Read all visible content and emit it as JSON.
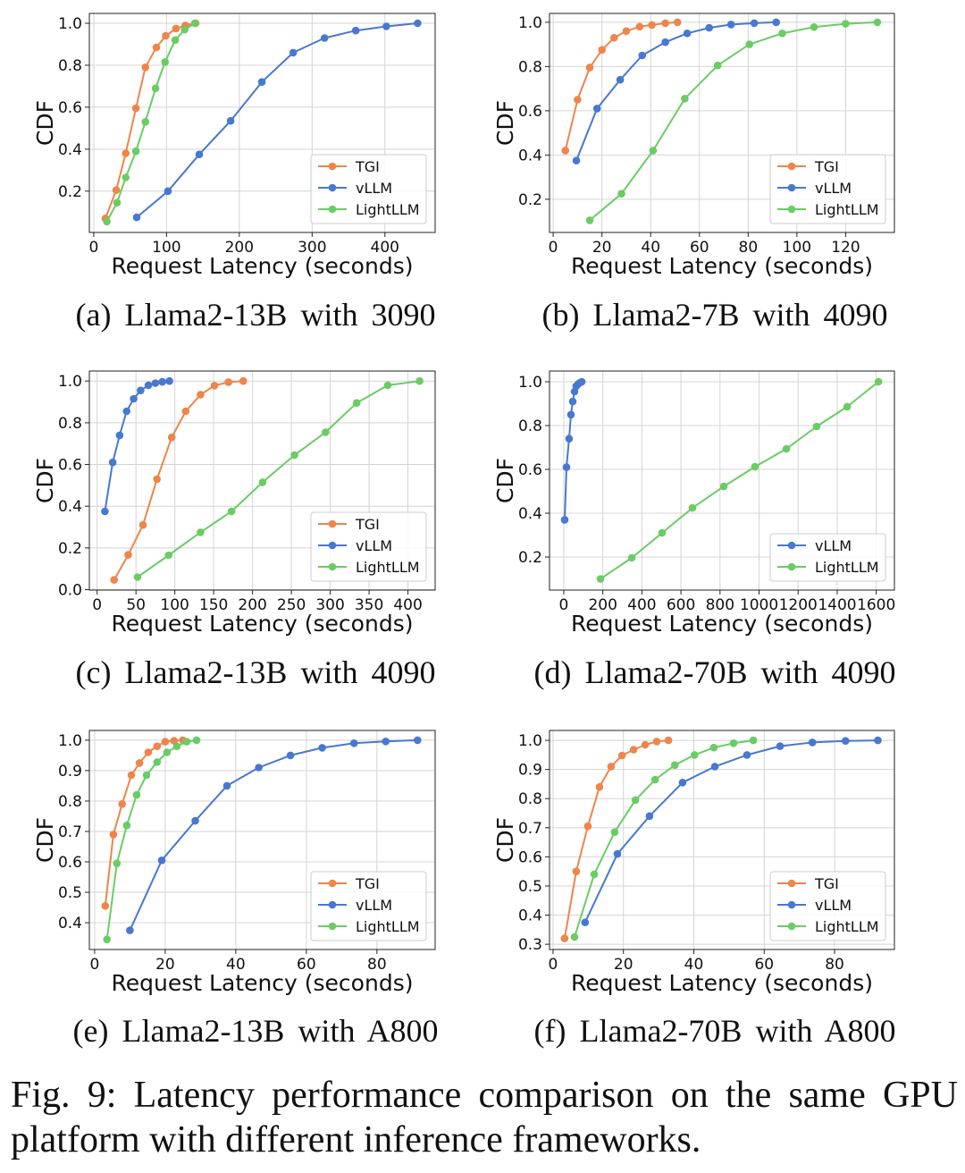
{
  "figure": {
    "caption": "Fig. 9: Latency performance comparison on the same GPU platform with different inference frameworks."
  },
  "colors": {
    "TGI": "#ee854a",
    "vLLM": "#4878d0",
    "LightLLM": "#6acc64",
    "grid": "#d4d4d4",
    "axes": "#222222",
    "legend_border": "#cccccc"
  },
  "chart_data": [
    {
      "type": "line",
      "caption": "(a) Llama2-13B with 3090",
      "title": "",
      "xlabel": "Request Latency (seconds)",
      "ylabel": "CDF",
      "xlim": [
        -6,
        469
      ],
      "ylim": [
        0.003,
        1.047
      ],
      "xticks": [
        0,
        100,
        200,
        300,
        400
      ],
      "xtick_labels": [
        "0",
        "100",
        "200",
        "300",
        "400"
      ],
      "yticks": [
        0.2,
        0.4,
        0.6,
        0.8,
        1.0
      ],
      "ytick_labels": [
        "0.2",
        "0.4",
        "0.6",
        "0.8",
        "1.0"
      ],
      "grid": true,
      "legend": "lower right",
      "series": [
        {
          "name": "TGI",
          "x": [
            16,
            31,
            44,
            58,
            71,
            86,
            99,
            113,
            126,
            140
          ],
          "y": [
            0.07,
            0.205,
            0.38,
            0.595,
            0.79,
            0.885,
            0.94,
            0.975,
            0.99,
            1.0
          ]
        },
        {
          "name": "vLLM",
          "x": [
            59,
            102,
            145,
            188,
            231,
            274,
            317,
            360,
            402,
            445
          ],
          "y": [
            0.075,
            0.2,
            0.375,
            0.535,
            0.72,
            0.86,
            0.93,
            0.965,
            0.985,
            1.0
          ]
        },
        {
          "name": "LightLLM",
          "x": [
            18,
            32,
            44,
            58,
            71,
            85,
            98,
            112,
            125,
            139
          ],
          "y": [
            0.055,
            0.145,
            0.265,
            0.39,
            0.53,
            0.69,
            0.815,
            0.92,
            0.97,
            1.0
          ]
        }
      ]
    },
    {
      "type": "line",
      "caption": "(b) Llama2-7B with 4090",
      "title": "",
      "xlabel": "Request Latency (seconds)",
      "ylabel": "CDF",
      "xlim": [
        -1.5,
        140
      ],
      "ylim": [
        0.05,
        1.04
      ],
      "xticks": [
        0,
        20,
        40,
        60,
        80,
        100,
        120
      ],
      "xtick_labels": [
        "0",
        "20",
        "40",
        "60",
        "80",
        "100",
        "120"
      ],
      "yticks": [
        0.2,
        0.4,
        0.6,
        0.8,
        1.0
      ],
      "ytick_labels": [
        "0.2",
        "0.4",
        "0.6",
        "0.8",
        "1.0"
      ],
      "grid": true,
      "legend": "lower right",
      "series": [
        {
          "name": "TGI",
          "x": [
            5,
            10,
            15,
            20,
            25,
            30,
            35.5,
            40.5,
            46,
            51
          ],
          "y": [
            0.42,
            0.65,
            0.795,
            0.875,
            0.93,
            0.96,
            0.98,
            0.988,
            0.996,
            1.0
          ]
        },
        {
          "name": "vLLM",
          "x": [
            9.5,
            18,
            27.5,
            36.5,
            46,
            55,
            64,
            73,
            82.5,
            91.5
          ],
          "y": [
            0.375,
            0.61,
            0.74,
            0.85,
            0.91,
            0.95,
            0.975,
            0.99,
            0.996,
            1.0
          ]
        },
        {
          "name": "LightLLM",
          "x": [
            15,
            28,
            41,
            54,
            67.5,
            80.5,
            94,
            107,
            120,
            133
          ],
          "y": [
            0.105,
            0.225,
            0.42,
            0.655,
            0.805,
            0.9,
            0.95,
            0.978,
            0.993,
            1.0
          ]
        }
      ]
    },
    {
      "type": "line",
      "caption": "(c) Llama2-13B with 4090",
      "title": "",
      "xlabel": "Request Latency (seconds)",
      "ylabel": "CDF",
      "xlim": [
        -10,
        435
      ],
      "ylim": [
        -0.002,
        1.048
      ],
      "xticks": [
        0,
        50,
        100,
        150,
        200,
        250,
        300,
        350,
        400
      ],
      "xtick_labels": [
        "0",
        "50",
        "100",
        "150",
        "200",
        "250",
        "300",
        "350",
        "400"
      ],
      "yticks": [
        0.0,
        0.2,
        0.4,
        0.6,
        0.8,
        1.0
      ],
      "ytick_labels": [
        "0.0",
        "0.2",
        "0.4",
        "0.6",
        "0.8",
        "1.0"
      ],
      "grid": true,
      "legend": "lower right",
      "series": [
        {
          "name": "TGI",
          "x": [
            22,
            40,
            59,
            77,
            96,
            114,
            133,
            151,
            169,
            188
          ],
          "y": [
            0.047,
            0.167,
            0.31,
            0.53,
            0.73,
            0.855,
            0.935,
            0.978,
            0.995,
            1.0
          ]
        },
        {
          "name": "vLLM",
          "x": [
            10,
            20,
            29,
            38,
            47,
            56,
            66,
            75,
            84,
            93
          ],
          "y": [
            0.375,
            0.61,
            0.74,
            0.855,
            0.915,
            0.955,
            0.98,
            0.99,
            0.996,
            1.0
          ]
        },
        {
          "name": "LightLLM",
          "x": [
            52,
            92,
            133,
            173,
            213,
            254,
            294,
            334,
            374,
            415
          ],
          "y": [
            0.06,
            0.165,
            0.275,
            0.375,
            0.515,
            0.645,
            0.755,
            0.895,
            0.98,
            1.0
          ]
        }
      ]
    },
    {
      "type": "line",
      "caption": "(d) Llama2-70B with 4090",
      "title": "",
      "xlabel": "Request Latency (seconds)",
      "ylabel": "CDF",
      "xlim": [
        -73,
        1693
      ],
      "ylim": [
        0.049,
        1.049
      ],
      "xticks": [
        0,
        200,
        400,
        600,
        800,
        1000,
        1200,
        1400,
        1600
      ],
      "xtick_labels": [
        "0",
        "200",
        "400",
        "600",
        "800",
        "1000",
        "1200",
        "1400",
        "1600"
      ],
      "yticks": [
        0.2,
        0.4,
        0.6,
        0.8,
        1.0
      ],
      "ytick_labels": [
        "0.2",
        "0.4",
        "0.6",
        "0.8",
        "1.0"
      ],
      "grid": true,
      "legend": "lower right",
      "series": [
        {
          "name": "vLLM",
          "x": [
            5,
            14,
            27,
            37,
            46,
            55,
            64,
            74,
            83,
            92
          ],
          "y": [
            0.37,
            0.61,
            0.74,
            0.85,
            0.91,
            0.955,
            0.98,
            0.99,
            0.996,
            1.0
          ]
        },
        {
          "name": "LightLLM",
          "x": [
            188,
            348,
            503,
            659,
            819,
            979,
            1140,
            1295,
            1451,
            1611
          ],
          "y": [
            0.1,
            0.196,
            0.31,
            0.424,
            0.522,
            0.612,
            0.694,
            0.796,
            0.886,
            1.0
          ]
        }
      ]
    },
    {
      "type": "line",
      "caption": "(e) Llama2-13B with A800",
      "title": "",
      "xlabel": "Request Latency (seconds)",
      "ylabel": "CDF",
      "xlim": [
        -1.5,
        96.5
      ],
      "ylim": [
        0.312,
        1.032
      ],
      "xticks": [
        0,
        20,
        40,
        60,
        80
      ],
      "xtick_labels": [
        "0",
        "20",
        "40",
        "60",
        "80"
      ],
      "yticks": [
        0.4,
        0.5,
        0.6,
        0.7,
        0.8,
        0.9,
        1.0
      ],
      "ytick_labels": [
        "0.4",
        "0.5",
        "0.6",
        "0.7",
        "0.8",
        "0.9",
        "1.0"
      ],
      "grid": true,
      "legend": "lower right",
      "series": [
        {
          "name": "TGI",
          "x": [
            3,
            5.3,
            7.8,
            10.4,
            12.7,
            15.2,
            17.7,
            20,
            22.5,
            25
          ],
          "y": [
            0.455,
            0.69,
            0.79,
            0.885,
            0.925,
            0.96,
            0.98,
            0.995,
            0.998,
            1.0
          ]
        },
        {
          "name": "vLLM",
          "x": [
            10,
            19,
            28.5,
            37.5,
            46.5,
            55.5,
            64.5,
            73.5,
            82.5,
            91.5
          ],
          "y": [
            0.375,
            0.605,
            0.735,
            0.85,
            0.91,
            0.95,
            0.975,
            0.99,
            0.996,
            1.0
          ]
        },
        {
          "name": "LightLLM",
          "x": [
            3.5,
            6.3,
            9.1,
            11.9,
            14.7,
            17.7,
            20.5,
            23.3,
            26.1,
            28.9
          ],
          "y": [
            0.345,
            0.595,
            0.72,
            0.82,
            0.885,
            0.928,
            0.96,
            0.98,
            0.995,
            1.0
          ]
        }
      ]
    },
    {
      "type": "line",
      "caption": "(f) Llama2-70B with A800",
      "title": "",
      "xlabel": "Request Latency (seconds)",
      "ylabel": "CDF",
      "xlim": [
        -1,
        97
      ],
      "ylim": [
        0.282,
        1.034
      ],
      "xticks": [
        0,
        20,
        40,
        60,
        80
      ],
      "xtick_labels": [
        "0",
        "20",
        "40",
        "60",
        "80"
      ],
      "yticks": [
        0.3,
        0.4,
        0.5,
        0.6,
        0.7,
        0.8,
        0.9,
        1.0
      ],
      "ytick_labels": [
        "0.3",
        "0.4",
        "0.5",
        "0.6",
        "0.7",
        "0.8",
        "0.9",
        "1.0"
      ],
      "grid": true,
      "legend": "lower right",
      "series": [
        {
          "name": "TGI",
          "x": [
            3.3,
            6.6,
            9.9,
            13.2,
            16.5,
            19.6,
            22.9,
            26.2,
            29.5,
            32.8
          ],
          "y": [
            0.32,
            0.55,
            0.705,
            0.84,
            0.91,
            0.948,
            0.968,
            0.985,
            0.996,
            1.0
          ]
        },
        {
          "name": "vLLM",
          "x": [
            9.1,
            18.3,
            27.4,
            36.8,
            46,
            55.1,
            64.5,
            73.7,
            83.1,
            92.3
          ],
          "y": [
            0.375,
            0.61,
            0.74,
            0.855,
            0.91,
            0.95,
            0.98,
            0.993,
            0.998,
            1.0
          ]
        },
        {
          "name": "LightLLM",
          "x": [
            6.1,
            11.7,
            17.5,
            23.4,
            29,
            34.6,
            40.2,
            45.7,
            51.3,
            56.9
          ],
          "y": [
            0.325,
            0.54,
            0.685,
            0.795,
            0.865,
            0.915,
            0.95,
            0.975,
            0.99,
            1.0
          ]
        }
      ]
    }
  ]
}
